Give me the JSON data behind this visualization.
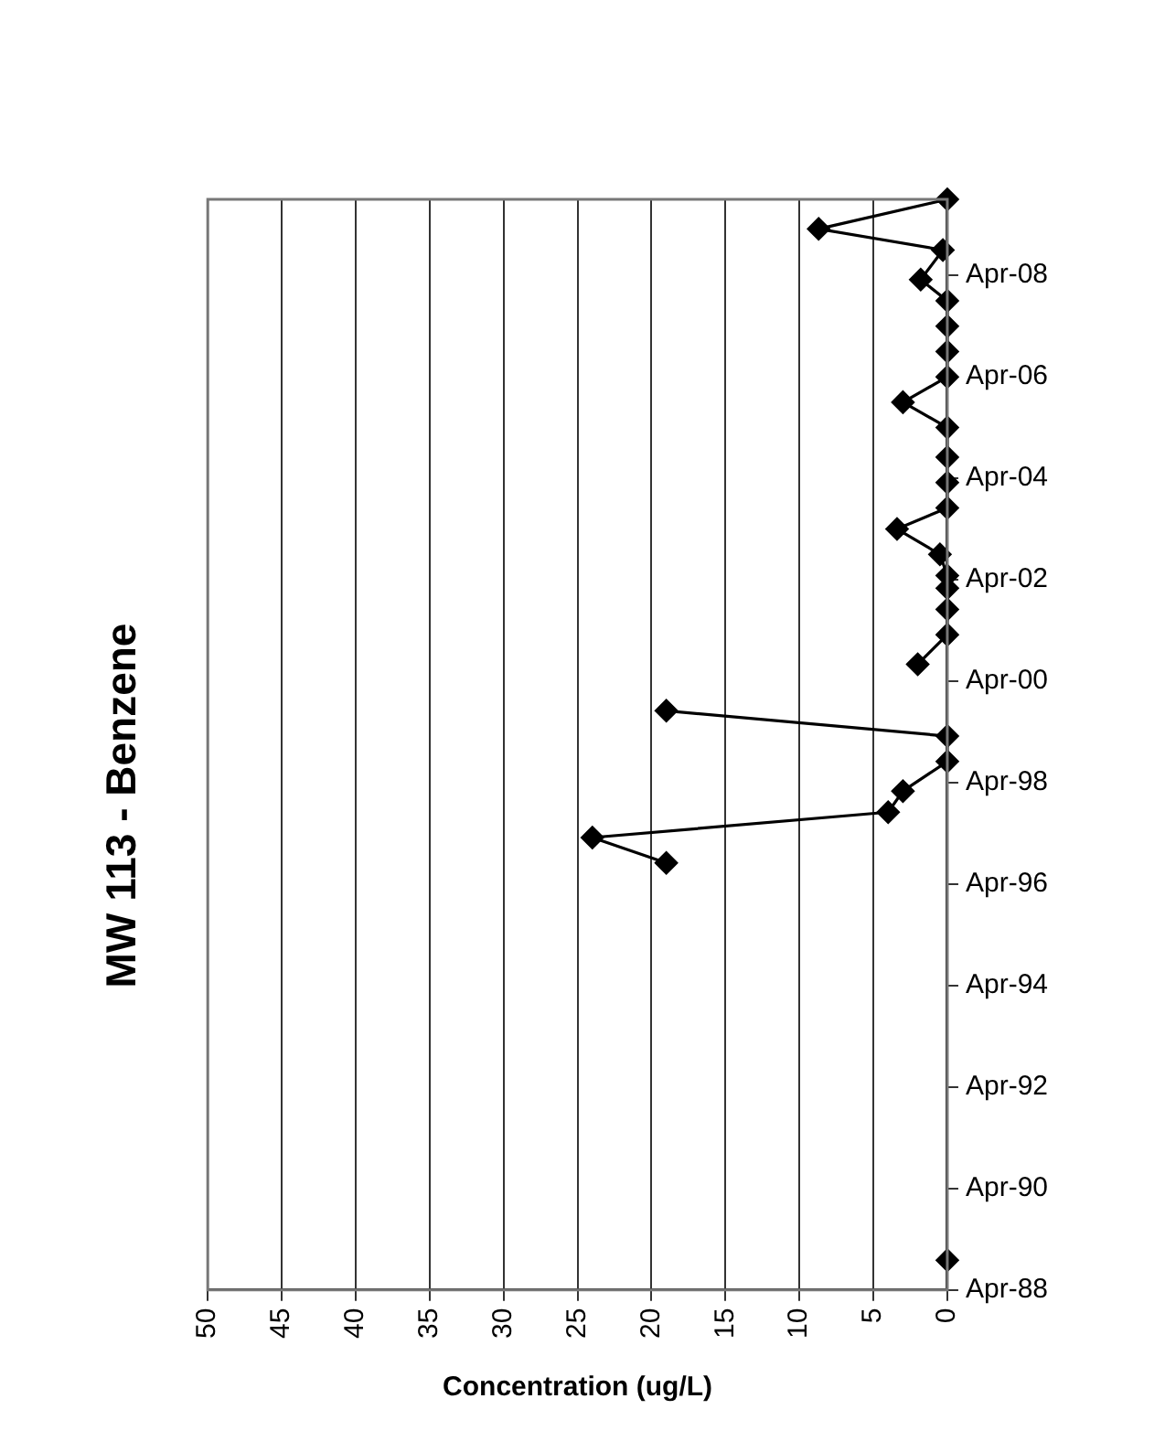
{
  "chart_data": {
    "type": "line",
    "orientation": "horizontal",
    "title": "MW 113 - Benzene",
    "xlabel": "Concentration (ug/L)",
    "x": [
      "1988-11",
      "1989-01",
      "1996-08",
      "1996-09",
      "1997-03",
      "1997-09",
      "1998-02",
      "1998-09",
      "1999-03",
      "1999-09",
      "2000-02",
      "2000-08",
      "2001-03",
      "2001-09",
      "2002-02",
      "2002-05",
      "2002-10",
      "2003-04",
      "2003-09",
      "2004-03",
      "2004-09",
      "2005-04",
      "2005-10",
      "2006-04",
      "2006-10",
      "2007-04",
      "2007-10",
      "2008-03",
      "2008-10",
      "2009-03",
      "2009-10"
    ],
    "series": [
      {
        "color": "#000000",
        "values": [
          0,
          null,
          null,
          19,
          24,
          4,
          3,
          0,
          0,
          19,
          null,
          2,
          0,
          0,
          0,
          0,
          0.5,
          3.4,
          0,
          0,
          0,
          0,
          3,
          0,
          0,
          0,
          0,
          1.8,
          0.3,
          8.7,
          0
        ]
      }
    ],
    "ylim": [
      "1988-04",
      "2009-10"
    ],
    "yticks": [
      {
        "value": "1988-04",
        "label": "Apr-88"
      },
      {
        "value": "1990-04",
        "label": "Apr-90"
      },
      {
        "value": "1992-04",
        "label": "Apr-92"
      },
      {
        "value": "1994-04",
        "label": "Apr-94"
      },
      {
        "value": "1996-04",
        "label": "Apr-96"
      },
      {
        "value": "1998-04",
        "label": "Apr-98"
      },
      {
        "value": "2000-04",
        "label": "Apr-00"
      },
      {
        "value": "2002-04",
        "label": "Apr-02"
      },
      {
        "value": "2004-04",
        "label": "Apr-04"
      },
      {
        "value": "2006-04",
        "label": "Apr-06"
      },
      {
        "value": "2008-04",
        "label": "Apr-08"
      }
    ],
    "xlim": [
      50,
      0
    ],
    "xticks": [
      50,
      45,
      40,
      35,
      30,
      25,
      20,
      15,
      10,
      5,
      0
    ],
    "grid": "x",
    "legend": false,
    "marker": "diamond",
    "line_style": "solid"
  }
}
